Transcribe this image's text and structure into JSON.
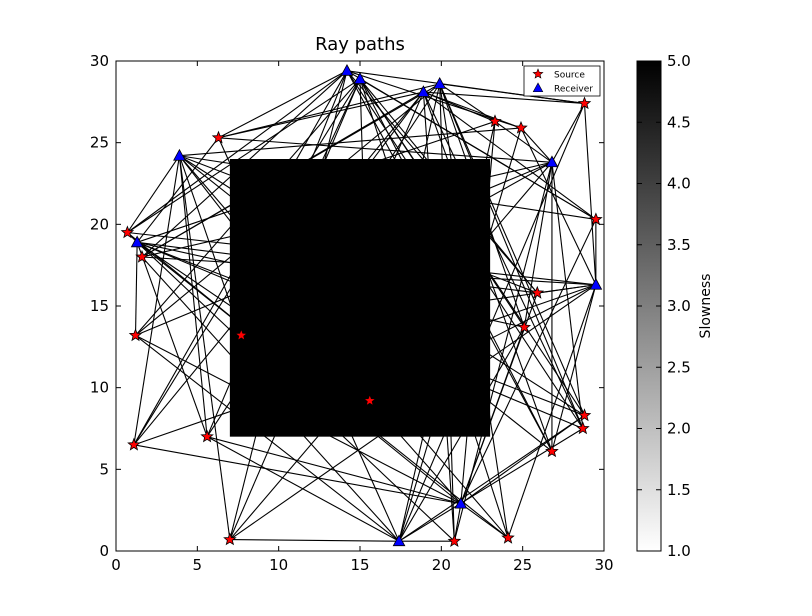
{
  "chart_data": {
    "type": "scatter",
    "title": "Ray paths",
    "xlabel": "",
    "ylabel": "",
    "xlim": [
      0,
      30
    ],
    "ylim": [
      0,
      30
    ],
    "x_ticks": [
      0,
      5,
      10,
      15,
      20,
      25,
      30
    ],
    "y_ticks": [
      0,
      5,
      10,
      15,
      20,
      25,
      30
    ],
    "grid": false,
    "legend_position": "top-right",
    "slowness_block": {
      "x": [
        7,
        23
      ],
      "y": [
        7,
        24
      ],
      "value": 5.0,
      "color": "#000000"
    },
    "colorbar": {
      "label": "Slowness",
      "range": [
        1.0,
        5.0
      ],
      "ticks": [
        "1.0",
        "1.5",
        "2.0",
        "2.5",
        "3.0",
        "3.5",
        "4.0",
        "4.5",
        "5.0"
      ],
      "color_low": "#ffffff",
      "color_high": "#000000"
    },
    "series": [
      {
        "name": "Source",
        "marker": "star",
        "color": "#ff0000",
        "points": [
          [
            0.7,
            19.5
          ],
          [
            1.2,
            13.2
          ],
          [
            1.6,
            18.0
          ],
          [
            1.1,
            6.5
          ],
          [
            5.6,
            7.0
          ],
          [
            6.3,
            25.3
          ],
          [
            7.7,
            13.2
          ],
          [
            15.6,
            9.2
          ],
          [
            23.3,
            26.3
          ],
          [
            24.9,
            25.9
          ],
          [
            25.9,
            15.8
          ],
          [
            25.1,
            13.7
          ],
          [
            28.8,
            27.4
          ],
          [
            29.5,
            20.3
          ],
          [
            28.8,
            8.3
          ],
          [
            28.7,
            7.5
          ],
          [
            26.8,
            6.1
          ],
          [
            24.1,
            0.8
          ],
          [
            20.8,
            0.6
          ],
          [
            7.0,
            0.7
          ]
        ]
      },
      {
        "name": "Receiver",
        "marker": "triangle",
        "color": "#0000ff",
        "points": [
          [
            14.2,
            29.4
          ],
          [
            15.0,
            28.9
          ],
          [
            19.9,
            28.6
          ],
          [
            18.9,
            28.1
          ],
          [
            3.9,
            24.2
          ],
          [
            1.3,
            18.9
          ],
          [
            26.8,
            23.8
          ],
          [
            29.5,
            16.3
          ],
          [
            21.2,
            2.9
          ],
          [
            17.4,
            0.6
          ]
        ]
      }
    ],
    "rays_color": "#000000"
  }
}
